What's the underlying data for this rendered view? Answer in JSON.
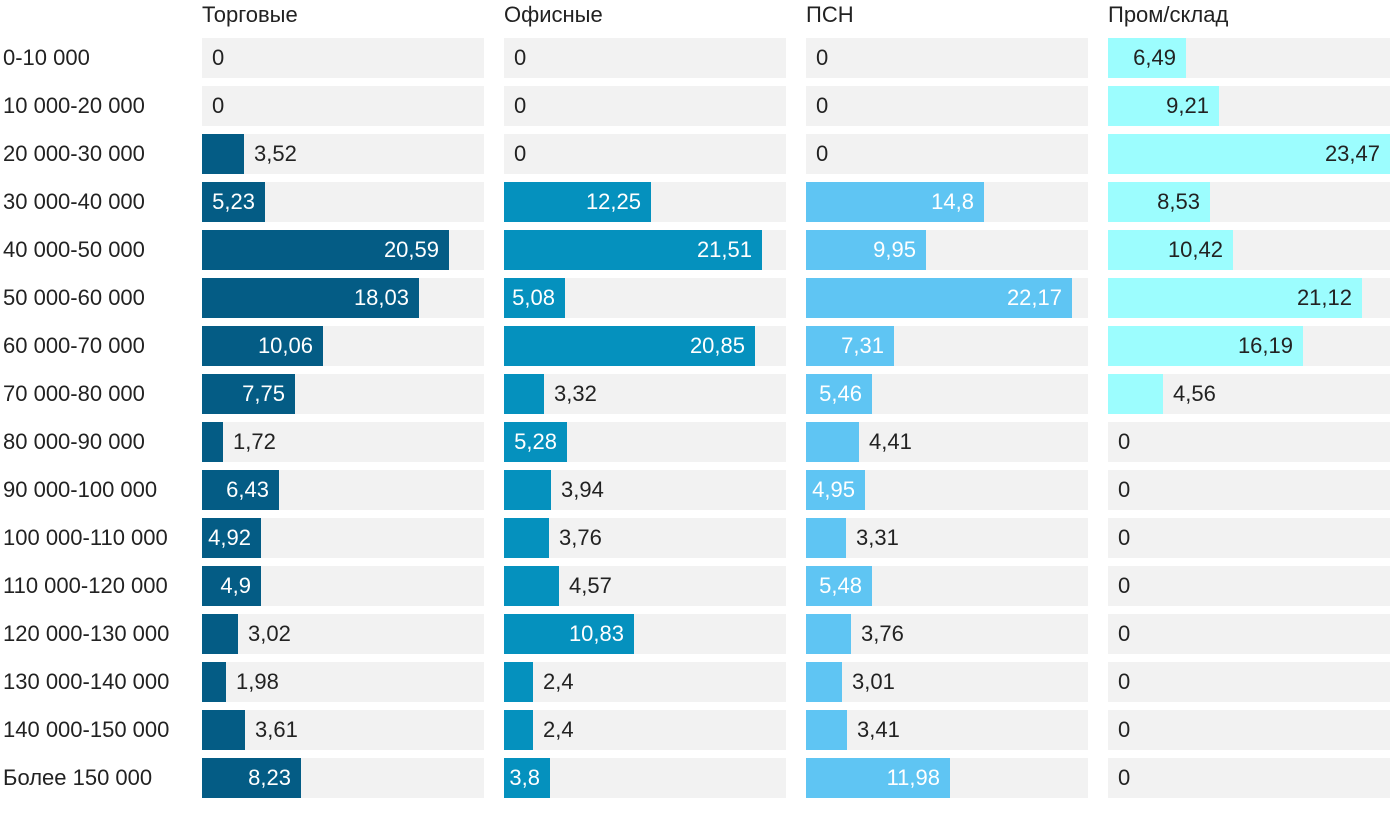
{
  "chart_data": {
    "type": "bar",
    "orientation": "horizontal",
    "layout": "small-multiples",
    "xlim": [
      0,
      23.47
    ],
    "categories": [
      "0-10 000",
      "10 000-20 000",
      "20 000-30 000",
      "30 000-40 000",
      "40 000-50 000",
      "50 000-60 000",
      "60 000-70 000",
      "70 000-80 000",
      "80 000-90 000",
      "90 000-100 000",
      "100 000-110 000",
      "110 000-120 000",
      "120 000-130 000",
      "130 000-140 000",
      "140 000-150 000",
      "Более 150 000"
    ],
    "series": [
      {
        "name": "Торговые",
        "color": "#045c85",
        "values": [
          0,
          0,
          3.52,
          5.23,
          20.59,
          18.03,
          10.06,
          7.75,
          1.72,
          6.43,
          4.92,
          4.9,
          3.02,
          1.98,
          3.61,
          8.23
        ],
        "labels": [
          "0",
          "0",
          "3,52",
          "5,23",
          "20,59",
          "18,03",
          "10,06",
          "7,75",
          "1,72",
          "6,43",
          "4,92",
          "4,9",
          "3,02",
          "1,98",
          "3,61",
          "8,23"
        ]
      },
      {
        "name": "Офисные",
        "color": "#0591be",
        "values": [
          0,
          0,
          0,
          12.25,
          21.51,
          5.08,
          20.85,
          3.32,
          5.28,
          3.94,
          3.76,
          4.57,
          10.83,
          2.4,
          2.4,
          3.8
        ],
        "labels": [
          "0",
          "0",
          "0",
          "12,25",
          "21,51",
          "5,08",
          "20,85",
          "3,32",
          "5,28",
          "3,94",
          "3,76",
          "4,57",
          "10,83",
          "2,4",
          "2,4",
          "3,8"
        ]
      },
      {
        "name": "ПСН",
        "color": "#5fc5f3",
        "values": [
          0,
          0,
          0,
          14.8,
          9.95,
          22.17,
          7.31,
          5.46,
          4.41,
          4.95,
          3.31,
          5.48,
          3.76,
          3.01,
          3.41,
          11.98
        ],
        "labels": [
          "0",
          "0",
          "0",
          "14,8",
          "9,95",
          "22,17",
          "7,31",
          "5,46",
          "4,41",
          "4,95",
          "3,31",
          "5,48",
          "3,76",
          "3,01",
          "3,41",
          "11,98"
        ]
      },
      {
        "name": "Пром/склад",
        "color": "#9cfdfe",
        "values": [
          6.49,
          9.21,
          23.47,
          8.53,
          10.42,
          21.12,
          16.19,
          4.56,
          0,
          0,
          0,
          0,
          0,
          0,
          0,
          0
        ],
        "labels": [
          "6,49",
          "9,21",
          "23,47",
          "8,53",
          "10,42",
          "21,12",
          "16,19",
          "4,56",
          "0",
          "0",
          "0",
          "0",
          "0",
          "0",
          "0",
          "0"
        ]
      }
    ]
  }
}
